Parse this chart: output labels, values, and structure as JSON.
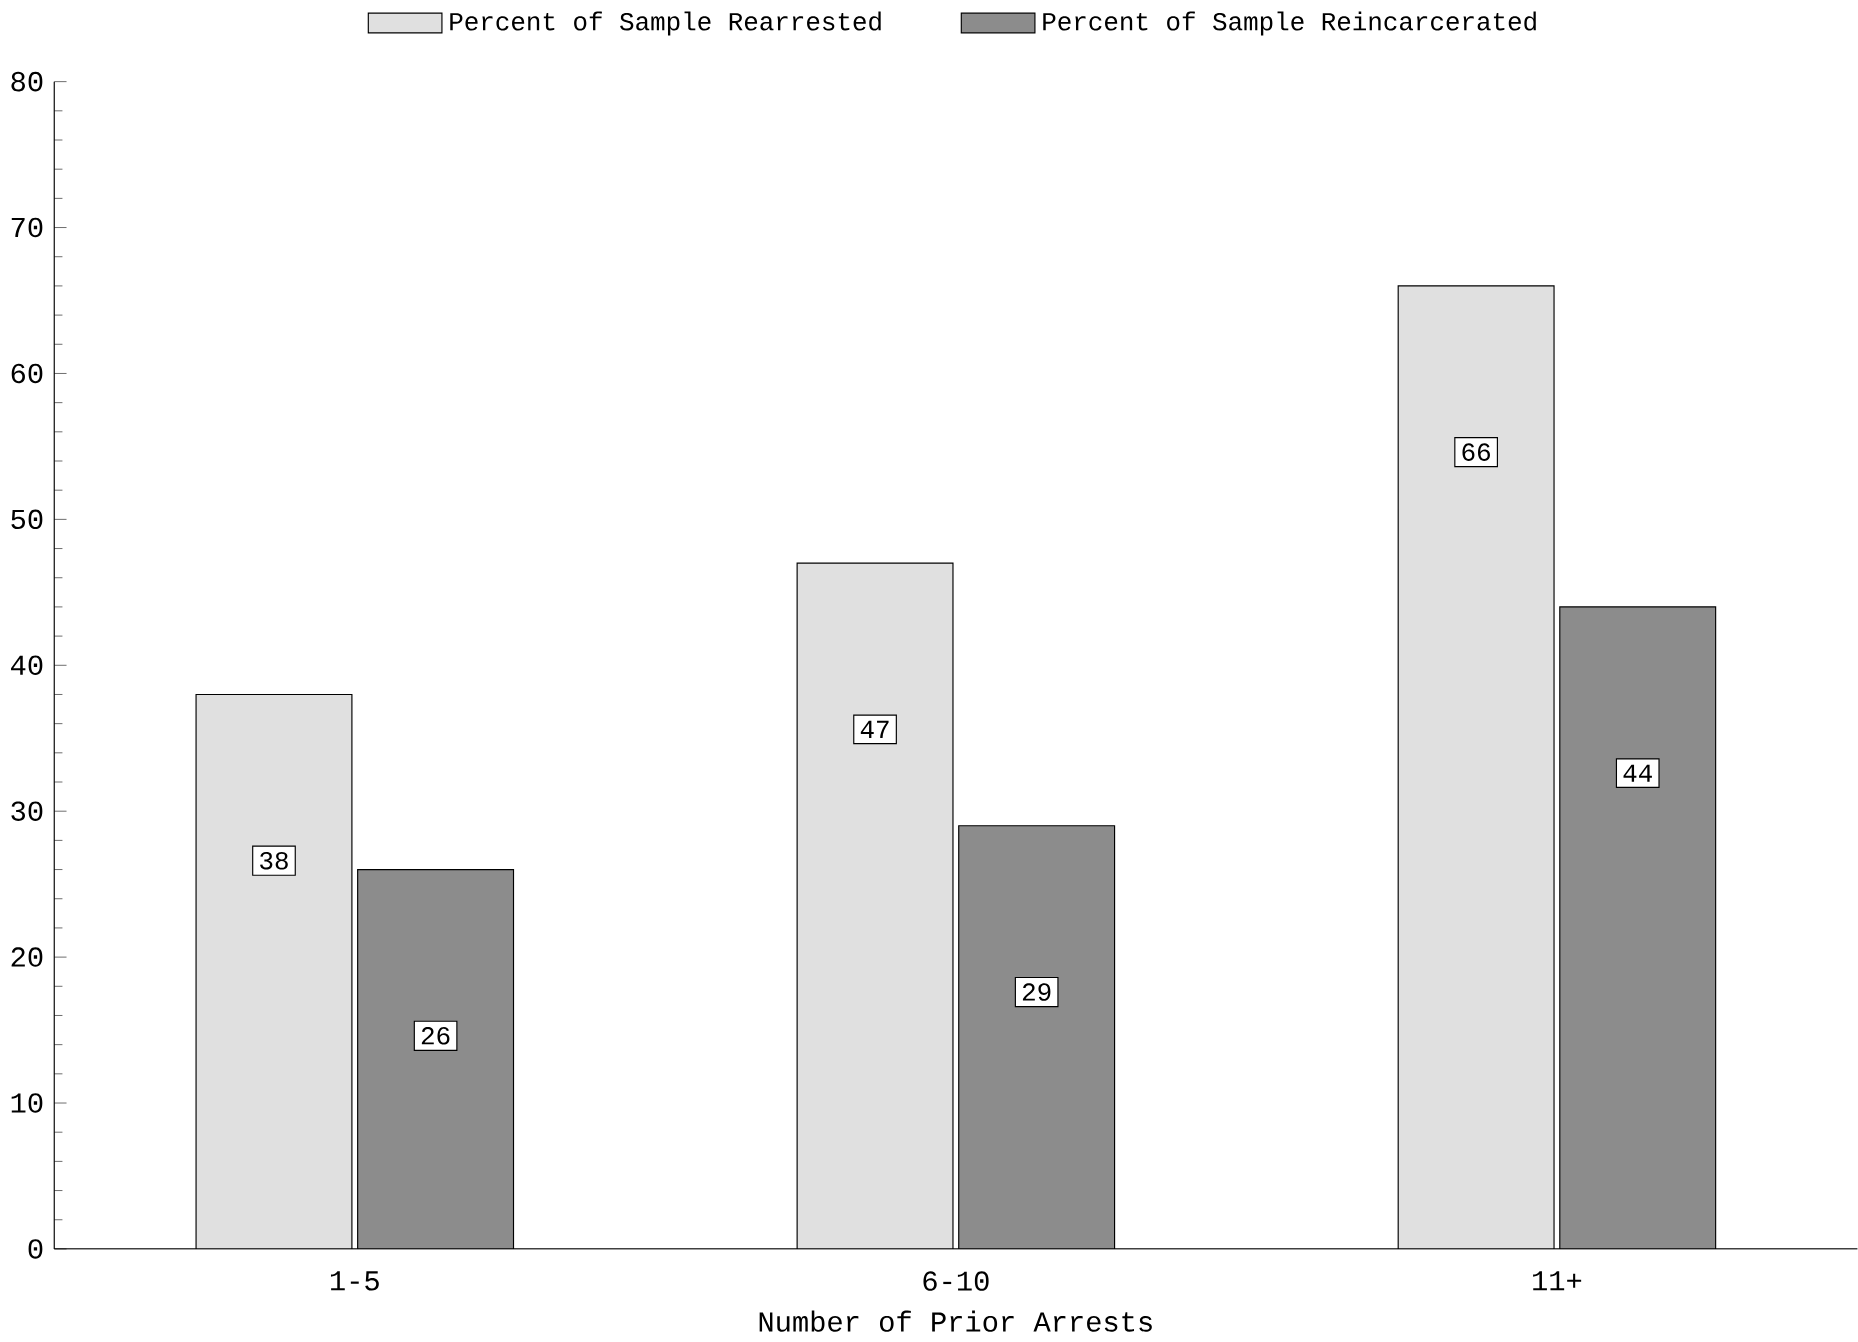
{
  "chart_data": {
    "type": "bar",
    "xlabel": "Number of Prior Arrests",
    "categories": [
      "1-5",
      "6-10",
      "11+"
    ],
    "series": [
      {
        "name": "Percent of Sample Rearrested",
        "color": "#e0e0e0",
        "values": [
          38,
          47,
          66
        ]
      },
      {
        "name": "Percent of Sample Reincarcerated",
        "color": "#8c8c8c",
        "values": [
          26,
          29,
          44
        ]
      }
    ],
    "ylim": [
      0,
      80
    ],
    "yticks": [
      0,
      10,
      20,
      30,
      40,
      50,
      60,
      70,
      80
    ],
    "data_labels": true,
    "legend": "top",
    "grid": false
  }
}
